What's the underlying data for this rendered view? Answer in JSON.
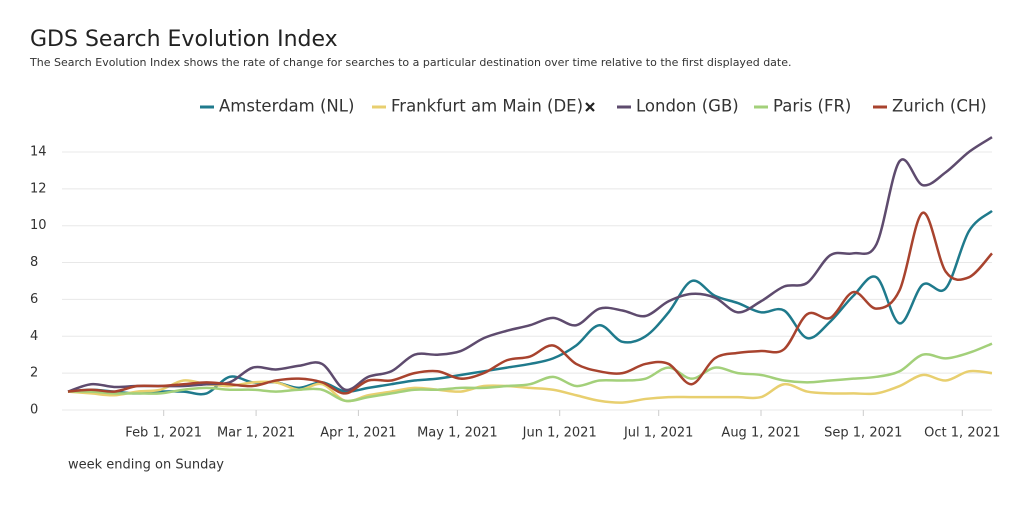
{
  "chart_data": {
    "type": "line",
    "title": "GDS Search Evolution Index",
    "subtitle": "The Search Evolution Index shows the rate of change for searches to a particular destination over time relative to the first displayed date.",
    "x_label": "week ending on Sunday",
    "x": [
      "2021-01-03",
      "2021-01-10",
      "2021-01-17",
      "2021-01-24",
      "2021-01-31",
      "2021-02-07",
      "2021-02-14",
      "2021-02-21",
      "2021-02-28",
      "2021-03-07",
      "2021-03-14",
      "2021-03-21",
      "2021-03-28",
      "2021-04-04",
      "2021-04-11",
      "2021-04-18",
      "2021-04-25",
      "2021-05-02",
      "2021-05-09",
      "2021-05-16",
      "2021-05-23",
      "2021-05-30",
      "2021-06-06",
      "2021-06-13",
      "2021-06-20",
      "2021-06-27",
      "2021-07-04",
      "2021-07-11",
      "2021-07-18",
      "2021-07-25",
      "2021-08-01",
      "2021-08-08",
      "2021-08-15",
      "2021-08-22",
      "2021-08-29",
      "2021-09-05",
      "2021-09-12",
      "2021-09-19",
      "2021-09-26",
      "2021-10-03",
      "2021-10-10"
    ],
    "series": [
      {
        "name": "Amsterdam (NL)",
        "color": "#1f7a8c",
        "values": [
          1.0,
          1.1,
          1.0,
          0.9,
          1.0,
          1.0,
          0.9,
          1.8,
          1.5,
          1.5,
          1.2,
          1.5,
          1.0,
          1.2,
          1.4,
          1.6,
          1.7,
          1.9,
          2.1,
          2.3,
          2.5,
          2.8,
          3.5,
          4.6,
          3.7,
          4.0,
          5.3,
          7.0,
          6.2,
          5.8,
          5.3,
          5.4,
          3.9,
          4.8,
          6.2,
          7.2,
          4.7,
          6.8,
          6.6,
          9.7,
          10.8
        ]
      },
      {
        "name": "Frankfurt am Main (DE)",
        "color": "#e8cf6f",
        "values": [
          1.0,
          0.9,
          0.8,
          1.0,
          1.1,
          1.6,
          1.4,
          1.3,
          1.5,
          1.5,
          1.1,
          1.4,
          0.5,
          0.8,
          1.0,
          1.2,
          1.1,
          1.0,
          1.3,
          1.3,
          1.2,
          1.1,
          0.8,
          0.5,
          0.4,
          0.6,
          0.7,
          0.7,
          0.7,
          0.7,
          0.7,
          1.4,
          1.0,
          0.9,
          0.9,
          0.9,
          1.3,
          1.9,
          1.6,
          2.1,
          2.0
        ]
      },
      {
        "name": "London (GB)",
        "color": "#5e4b6e",
        "values": [
          1.0,
          1.4,
          1.25,
          1.3,
          1.3,
          1.3,
          1.4,
          1.5,
          2.3,
          2.2,
          2.4,
          2.5,
          1.1,
          1.8,
          2.1,
          3.0,
          3.0,
          3.2,
          3.9,
          4.3,
          4.6,
          5.0,
          4.6,
          5.5,
          5.4,
          5.1,
          5.9,
          6.3,
          6.1,
          5.3,
          5.9,
          6.7,
          6.9,
          8.4,
          8.5,
          9.0,
          13.5,
          12.2,
          12.9,
          14.0,
          14.8
        ]
      },
      {
        "name": "Paris (FR)",
        "color": "#a3d07a",
        "values": [
          1.0,
          1.0,
          0.9,
          0.9,
          0.9,
          1.1,
          1.2,
          1.1,
          1.1,
          1.0,
          1.1,
          1.1,
          0.5,
          0.7,
          0.9,
          1.1,
          1.1,
          1.2,
          1.2,
          1.3,
          1.4,
          1.8,
          1.3,
          1.6,
          1.6,
          1.7,
          2.3,
          1.7,
          2.3,
          2.0,
          1.9,
          1.6,
          1.5,
          1.6,
          1.7,
          1.8,
          2.1,
          3.0,
          2.8,
          3.1,
          3.6
        ]
      },
      {
        "name": "Zurich (CH)",
        "color": "#a8432e",
        "values": [
          1.0,
          1.1,
          1.0,
          1.3,
          1.3,
          1.4,
          1.5,
          1.4,
          1.3,
          1.6,
          1.7,
          1.5,
          0.9,
          1.6,
          1.6,
          2.0,
          2.1,
          1.7,
          2.0,
          2.7,
          2.9,
          3.5,
          2.5,
          2.1,
          2.0,
          2.5,
          2.5,
          1.4,
          2.8,
          3.1,
          3.2,
          3.3,
          5.2,
          5.0,
          6.4,
          5.5,
          6.5,
          10.7,
          7.5,
          7.2,
          8.5
        ]
      }
    ],
    "xlim": [
      "2021-01-03",
      "2021-10-10"
    ],
    "xticks": [
      {
        "value": "2021-02-01",
        "label": "Feb 1, 2021"
      },
      {
        "value": "2021-03-01",
        "label": "Mar 1, 2021"
      },
      {
        "value": "2021-04-01",
        "label": "Apr 1, 2021"
      },
      {
        "value": "2021-05-01",
        "label": "May 1, 2021"
      },
      {
        "value": "2021-06-01",
        "label": "Jun 1, 2021"
      },
      {
        "value": "2021-07-01",
        "label": "Jul 1, 2021"
      },
      {
        "value": "2021-08-01",
        "label": "Aug 1, 2021"
      },
      {
        "value": "2021-09-01",
        "label": "Sep 1, 2021"
      },
      {
        "value": "2021-10-01",
        "label": "Oct 1, 2021"
      }
    ],
    "ylim": [
      0,
      15
    ],
    "yticks": [
      0,
      2,
      4,
      6,
      8,
      10,
      12,
      14
    ],
    "grid": true,
    "legend": "top"
  }
}
